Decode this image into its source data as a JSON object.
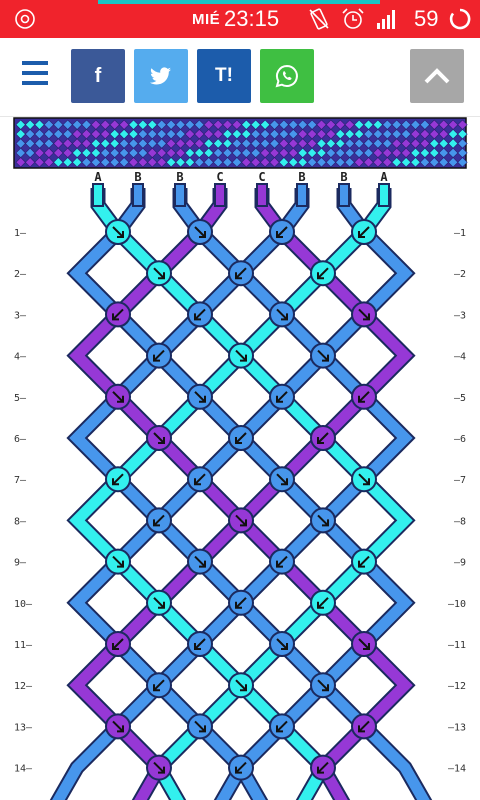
{
  "status_bar": {
    "day": "MIÉ",
    "time": "23:15",
    "battery": "59",
    "icons": [
      "camera-icon",
      "no-vibrate-icon",
      "alarm-icon",
      "signal-icon",
      "battery-ring-icon"
    ]
  },
  "toolbar": {
    "menu": "menu-icon",
    "facebook_label": "f",
    "twitter_label": "twitter-bird-icon",
    "tuenti_label": "T!",
    "whatsapp_label": "whatsapp-icon",
    "scroll_top": "chevron-up-icon"
  },
  "colors": {
    "A": "#33f0ee",
    "B": "#4796ec",
    "C": "#9638d6",
    "outline": "#1b2a5f",
    "status_bar": "#f0232c",
    "facebook": "#3b5998",
    "twitter": "#55acee",
    "tuenti": "#1c5cab",
    "whatsapp": "#3fbf42",
    "scroll_top": "#a7a7a7"
  },
  "pattern": {
    "strings": [
      "A",
      "B",
      "B",
      "C",
      "C",
      "B",
      "B",
      "A"
    ],
    "rows": [
      "1",
      "2",
      "3",
      "4",
      "5",
      "6",
      "7",
      "8",
      "9",
      "10",
      "11",
      "12",
      "13",
      "14"
    ]
  }
}
